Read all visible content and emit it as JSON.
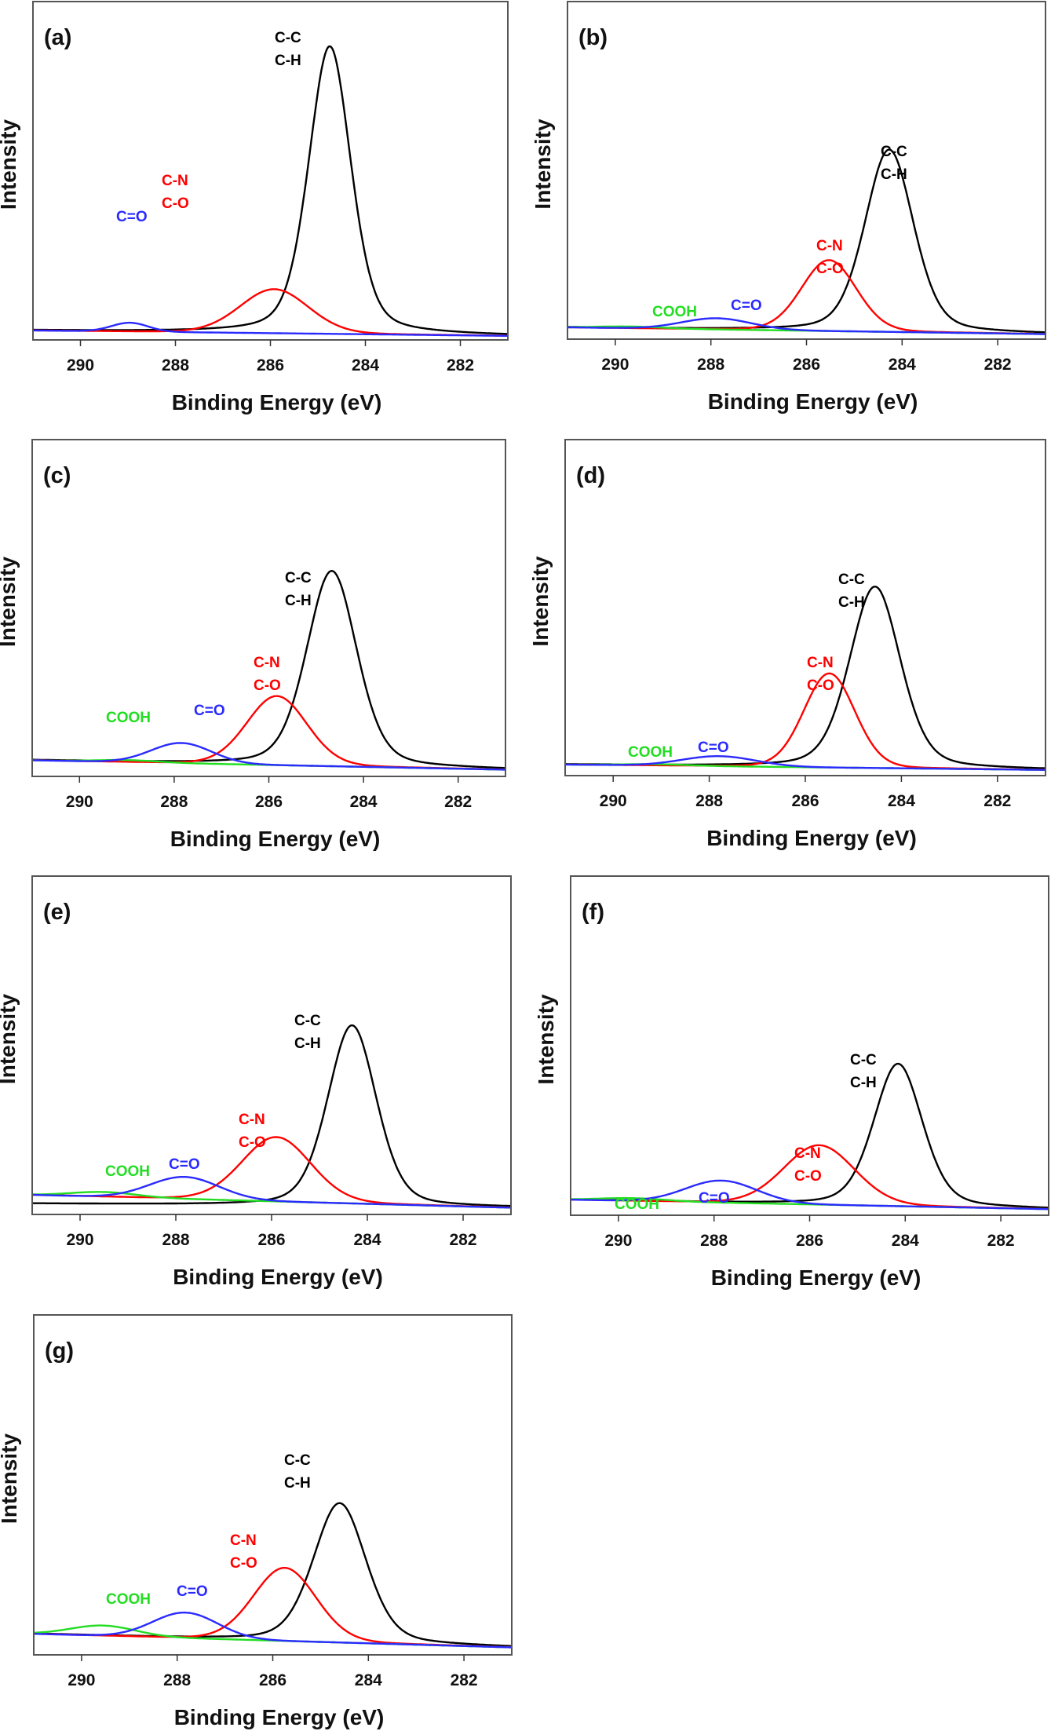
{
  "figure": {
    "panel_count": 7,
    "colors": {
      "C-C/C-H": "#000000",
      "C-N/C-O": "#ff0000",
      "C=O": "#2a2aff",
      "COOH": "#22dd22"
    }
  },
  "chart_data": [
    {
      "type": "line",
      "panel": "(a)",
      "title": "",
      "xlabel": "Binding Energy (eV)",
      "ylabel": "Intensity",
      "xlim": [
        291,
        281
      ],
      "ylim": [
        0,
        1
      ],
      "x_reversed": true,
      "x_ticks": [
        290,
        288,
        286,
        284,
        282
      ],
      "grid": false,
      "baseline": {
        "left": 0.028,
        "right": 0.012
      },
      "series": [
        {
          "name": "C-C/C-H",
          "label_lines": [
            "C-C",
            "C-H"
          ],
          "color": "#000000",
          "center": 284.75,
          "height": 0.85,
          "fwhm": 1.05,
          "lorentz_frac": 0.35,
          "on_baseline": true
        },
        {
          "name": "C-N/C-O",
          "label_lines": [
            "C-N",
            "C-O"
          ],
          "color": "#ff0000",
          "center": 285.92,
          "height": 0.13,
          "fwhm": 1.7,
          "lorentz_frac": 0.1,
          "on_baseline": true
        },
        {
          "name": "C=O",
          "label_lines": [
            "C=O"
          ],
          "color": "#2a2aff",
          "center": 288.96,
          "height": 0.026,
          "fwhm": 0.9,
          "lorentz_frac": 0.0,
          "on_baseline": true
        }
      ]
    },
    {
      "type": "line",
      "panel": "(b)",
      "title": "",
      "xlabel": "Binding Energy (eV)",
      "ylabel": "Intensity",
      "xlim": [
        291,
        281
      ],
      "ylim": [
        0,
        1
      ],
      "x_reversed": true,
      "x_ticks": [
        290,
        288,
        286,
        284,
        282
      ],
      "grid": false,
      "baseline": {
        "left": 0.035,
        "right": 0.015
      },
      "series": [
        {
          "name": "C-C/C-H",
          "label_lines": [
            "C-C",
            "C-H"
          ],
          "color": "#000000",
          "center": 284.27,
          "height": 0.54,
          "fwhm": 1.2,
          "lorentz_frac": 0.3,
          "on_baseline": true
        },
        {
          "name": "C-N/C-O",
          "label_lines": [
            "C-N",
            "C-O"
          ],
          "color": "#ff0000",
          "center": 285.53,
          "height": 0.21,
          "fwhm": 1.35,
          "lorentz_frac": 0.1,
          "on_baseline": true
        },
        {
          "name": "C=O",
          "label_lines": [
            "C=O"
          ],
          "color": "#2a2aff",
          "center": 287.88,
          "height": 0.033,
          "fwhm": 1.7,
          "lorentz_frac": 0.0,
          "on_baseline": true
        },
        {
          "name": "COOH",
          "label_lines": [
            "COOH"
          ],
          "color": "#22dd22",
          "center": 289.7,
          "height": 0.005,
          "fwhm": 1.6,
          "lorentz_frac": 0.0,
          "on_baseline": true
        }
      ]
    },
    {
      "type": "line",
      "panel": "(c)",
      "title": "",
      "xlabel": "Binding Energy (eV)",
      "ylabel": "Intensity",
      "xlim": [
        291,
        281
      ],
      "ylim": [
        0,
        1
      ],
      "x_reversed": true,
      "x_ticks": [
        290,
        288,
        286,
        284,
        282
      ],
      "grid": false,
      "baseline": {
        "left": 0.048,
        "right": 0.02
      },
      "series": [
        {
          "name": "C-C/C-H",
          "label_lines": [
            "C-C",
            "C-H"
          ],
          "color": "#000000",
          "center": 284.67,
          "height": 0.58,
          "fwhm": 1.25,
          "lorentz_frac": 0.3,
          "on_baseline": true
        },
        {
          "name": "C-N/C-O",
          "label_lines": [
            "C-N",
            "C-O"
          ],
          "color": "#ff0000",
          "center": 285.83,
          "height": 0.205,
          "fwhm": 1.5,
          "lorentz_frac": 0.1,
          "on_baseline": true
        },
        {
          "name": "C=O",
          "label_lines": [
            "C=O"
          ],
          "color": "#2a2aff",
          "center": 287.85,
          "height": 0.06,
          "fwhm": 1.5,
          "lorentz_frac": 0.0,
          "on_baseline": true
        },
        {
          "name": "COOH",
          "label_lines": [
            "COOH"
          ],
          "color": "#22dd22",
          "center": 289.0,
          "height": 0.006,
          "fwhm": 1.5,
          "lorentz_frac": 0.0,
          "on_baseline": true
        }
      ]
    },
    {
      "type": "line",
      "panel": "(d)",
      "title": "",
      "xlabel": "Binding Energy (eV)",
      "ylabel": "Intensity",
      "xlim": [
        291,
        281
      ],
      "ylim": [
        0,
        1
      ],
      "x_reversed": true,
      "x_ticks": [
        290,
        288,
        286,
        284,
        282
      ],
      "grid": false,
      "baseline": {
        "left": 0.033,
        "right": 0.017
      },
      "series": [
        {
          "name": "C-C/C-H",
          "label_lines": [
            "C-C",
            "C-H"
          ],
          "color": "#000000",
          "center": 284.55,
          "height": 0.54,
          "fwhm": 1.25,
          "lorentz_frac": 0.3,
          "on_baseline": true
        },
        {
          "name": "C-N/C-O",
          "label_lines": [
            "C-N",
            "C-O"
          ],
          "color": "#ff0000",
          "center": 285.5,
          "height": 0.28,
          "fwhm": 1.25,
          "lorentz_frac": 0.1,
          "on_baseline": true
        },
        {
          "name": "C=O",
          "label_lines": [
            "C=O"
          ],
          "color": "#2a2aff",
          "center": 287.8,
          "height": 0.03,
          "fwhm": 1.8,
          "lorentz_frac": 0.0,
          "on_baseline": true
        },
        {
          "name": "COOH",
          "label_lines": [
            "COOH"
          ],
          "color": "#22dd22",
          "center": 289.1,
          "height": 0.004,
          "fwhm": 1.6,
          "lorentz_frac": 0.0,
          "on_baseline": true
        }
      ]
    },
    {
      "type": "line",
      "panel": "(e)",
      "title": "",
      "xlabel": "Binding Energy (eV)",
      "ylabel": "Intensity",
      "xlim": [
        291,
        281
      ],
      "ylim": [
        0,
        1
      ],
      "x_reversed": true,
      "x_ticks": [
        290,
        288,
        286,
        284,
        282
      ],
      "grid": false,
      "baseline": {
        "left": 0.058,
        "right": 0.02
      },
      "black_baseline": {
        "left": 0.032,
        "right": 0.02
      },
      "series": [
        {
          "name": "C-C/C-H",
          "label_lines": [
            "C-C",
            "C-H"
          ],
          "color": "#000000",
          "center": 284.32,
          "height": 0.535,
          "fwhm": 1.2,
          "lorentz_frac": 0.3,
          "on_baseline": "black"
        },
        {
          "name": "C-N/C-O",
          "label_lines": [
            "C-N",
            "C-O"
          ],
          "color": "#ff0000",
          "center": 285.9,
          "height": 0.19,
          "fwhm": 1.7,
          "lorentz_frac": 0.1,
          "on_baseline": true
        },
        {
          "name": "C=O",
          "label_lines": [
            "C=O"
          ],
          "color": "#2a2aff",
          "center": 287.82,
          "height": 0.065,
          "fwhm": 1.7,
          "lorentz_frac": 0.0,
          "on_baseline": true
        },
        {
          "name": "COOH",
          "label_lines": [
            "COOH"
          ],
          "color": "#22dd22",
          "center": 289.5,
          "height": 0.014,
          "fwhm": 1.6,
          "lorentz_frac": 0.0,
          "on_baseline": true
        }
      ]
    },
    {
      "type": "line",
      "panel": "(f)",
      "title": "",
      "xlabel": "Binding Energy (eV)",
      "ylabel": "Intensity",
      "xlim": [
        291,
        281
      ],
      "ylim": [
        0,
        1
      ],
      "x_reversed": true,
      "x_ticks": [
        290,
        288,
        286,
        284,
        282
      ],
      "grid": false,
      "baseline": {
        "left": 0.046,
        "right": 0.018
      },
      "series": [
        {
          "name": "C-C/C-H",
          "label_lines": [
            "C-C",
            "C-H"
          ],
          "color": "#000000",
          "center": 284.15,
          "height": 0.42,
          "fwhm": 1.2,
          "lorentz_frac": 0.3,
          "on_baseline": true
        },
        {
          "name": "C-N/C-O",
          "label_lines": [
            "C-N",
            "C-O"
          ],
          "color": "#ff0000",
          "center": 285.8,
          "height": 0.175,
          "fwhm": 1.75,
          "lorentz_frac": 0.1,
          "on_baseline": true
        },
        {
          "name": "C=O",
          "label_lines": [
            "C=O"
          ],
          "color": "#2a2aff",
          "center": 287.85,
          "height": 0.065,
          "fwhm": 1.75,
          "lorentz_frac": 0.0,
          "on_baseline": true
        },
        {
          "name": "COOH",
          "label_lines": [
            "COOH"
          ],
          "color": "#22dd22",
          "center": 289.7,
          "height": 0.008,
          "fwhm": 1.6,
          "lorentz_frac": 0.0,
          "on_baseline": true
        }
      ]
    },
    {
      "type": "line",
      "panel": "(g)",
      "title": "",
      "xlabel": "Binding Energy (eV)",
      "ylabel": "Intensity",
      "xlim": [
        291,
        281
      ],
      "ylim": [
        0,
        1
      ],
      "x_reversed": true,
      "x_ticks": [
        290,
        288,
        286,
        284,
        282
      ],
      "grid": false,
      "baseline": {
        "left": 0.062,
        "right": 0.022
      },
      "series": [
        {
          "name": "C-C/C-H",
          "label_lines": [
            "C-C",
            "C-H"
          ],
          "color": "#000000",
          "center": 284.6,
          "height": 0.41,
          "fwhm": 1.3,
          "lorentz_frac": 0.3,
          "on_baseline": true
        },
        {
          "name": "C-N/C-O",
          "label_lines": [
            "C-N",
            "C-O"
          ],
          "color": "#ff0000",
          "center": 285.75,
          "height": 0.215,
          "fwhm": 1.55,
          "lorentz_frac": 0.1,
          "on_baseline": true
        },
        {
          "name": "C=O",
          "label_lines": [
            "C=O"
          ],
          "color": "#2a2aff",
          "center": 287.83,
          "height": 0.075,
          "fwhm": 1.6,
          "lorentz_frac": 0.0,
          "on_baseline": true
        },
        {
          "name": "COOH",
          "label_lines": [
            "COOH"
          ],
          "color": "#22dd22",
          "center": 289.55,
          "height": 0.03,
          "fwhm": 1.6,
          "lorentz_frac": 0.0,
          "on_baseline": true
        }
      ]
    }
  ]
}
